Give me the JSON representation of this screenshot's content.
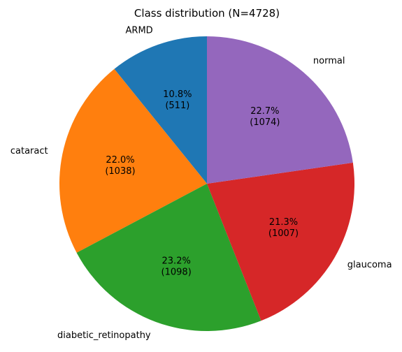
{
  "chart_data": {
    "type": "pie",
    "title": "Class distribution (N=4728)",
    "start_angle_deg": 90,
    "direction": "counterclockwise",
    "slices": [
      {
        "label": "ARMD",
        "value": 511,
        "pct_text": "10.8%",
        "count_text": "(511)",
        "color": "#1f77b4"
      },
      {
        "label": "cataract",
        "value": 1038,
        "pct_text": "22.0%",
        "count_text": "(1038)",
        "color": "#ff7f0e"
      },
      {
        "label": "diabetic_retinopathy",
        "value": 1098,
        "pct_text": "23.2%",
        "count_text": "(1098)",
        "color": "#2ca02c"
      },
      {
        "label": "glaucoma",
        "value": 1007,
        "pct_text": "21.3%",
        "count_text": "(1007)",
        "color": "#d62728"
      },
      {
        "label": "normal",
        "value": 1074,
        "pct_text": "22.7%",
        "count_text": "(1074)",
        "color": "#9467bd"
      }
    ]
  }
}
